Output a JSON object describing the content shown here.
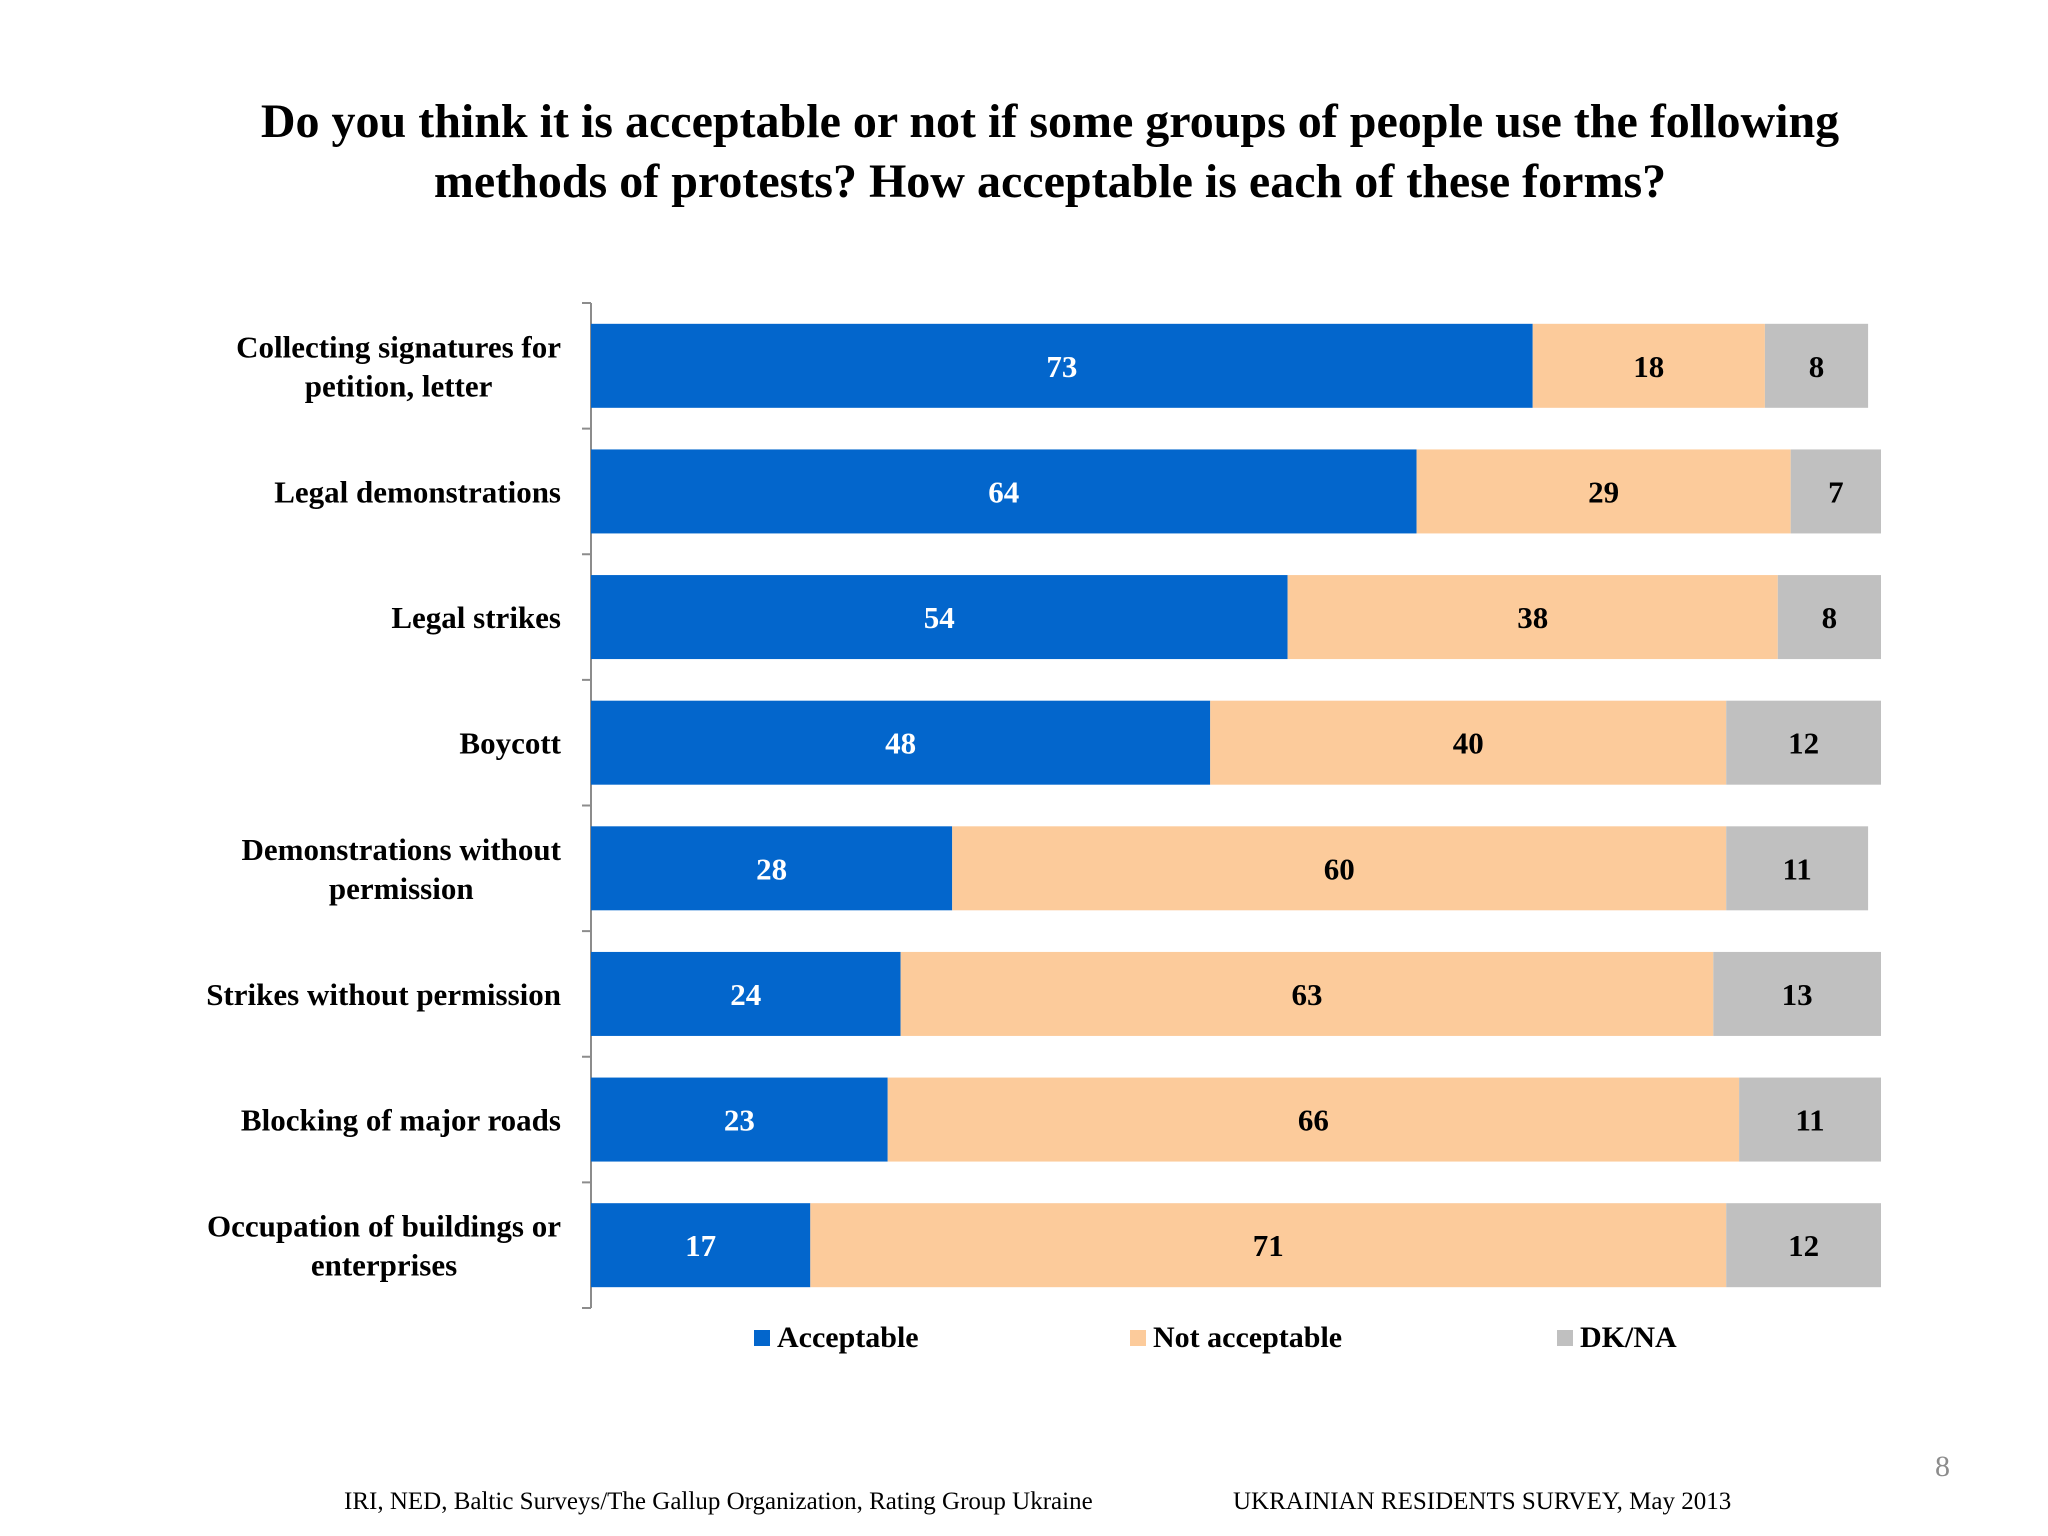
{
  "title": {
    "line1": "Do you think it is acceptable or not if some groups of people use the following",
    "line2": "methods of protests? How acceptable is each of these forms?"
  },
  "colors": {
    "acceptable": "#0366cc",
    "not_acceptable": "#fccb9b",
    "dk_na": "#c0c0c0"
  },
  "chart_data": {
    "type": "bar",
    "orientation": "horizontal",
    "stacked": true,
    "categories": [
      [
        "Collecting signatures for",
        "petition, letter"
      ],
      [
        "Legal demonstrations"
      ],
      [
        "Legal strikes"
      ],
      [
        "Boycott"
      ],
      [
        "Demonstrations without",
        "permission"
      ],
      [
        "Strikes without permission"
      ],
      [
        "Blocking of major roads"
      ],
      [
        "Occupation of buildings or",
        "enterprises"
      ]
    ],
    "series": [
      {
        "name": "Acceptable",
        "values": [
          73,
          64,
          54,
          48,
          28,
          24,
          23,
          17
        ]
      },
      {
        "name": "Not acceptable",
        "values": [
          18,
          29,
          38,
          40,
          60,
          63,
          66,
          71
        ]
      },
      {
        "name": "DK/NA",
        "values": [
          8,
          7,
          8,
          12,
          11,
          13,
          11,
          12
        ]
      }
    ],
    "xlim": [
      0,
      100
    ],
    "legend_position": "bottom",
    "grid": false
  },
  "footer": {
    "sources": "IRI, NED,  Baltic Surveys/The Gallup Organization, Rating Group Ukraine",
    "survey": "UKRAINIAN RESIDENTS SURVEY, May  2013",
    "page_number": "8"
  }
}
